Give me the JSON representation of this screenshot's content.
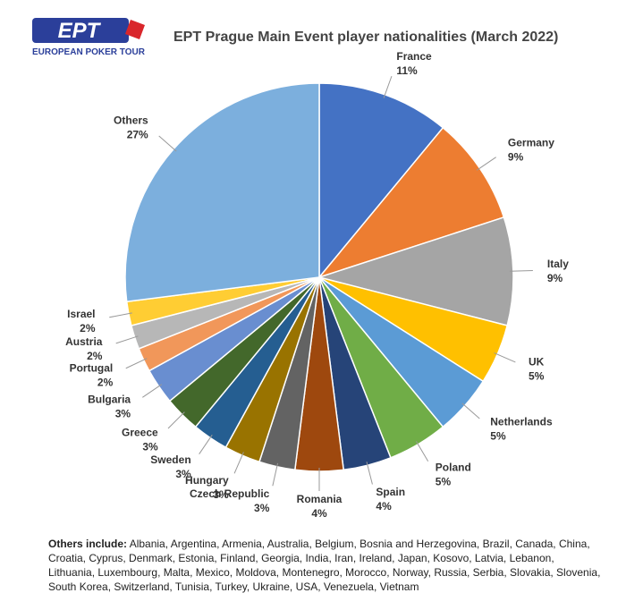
{
  "logo": {
    "text": "EPT",
    "subtitle": "EUROPEAN POKER TOUR"
  },
  "chart_data": {
    "type": "pie",
    "title": "EPT Prague Main Event player nationalities (March 2022)",
    "categories": [
      "France",
      "Germany",
      "Italy",
      "UK",
      "Netherlands",
      "Poland",
      "Spain",
      "Romania",
      "Czech Republic",
      "Hungary",
      "Sweden",
      "Greece",
      "Bulgaria",
      "Portugal",
      "Austria",
      "Israel",
      "Others"
    ],
    "values": [
      11,
      9,
      9,
      5,
      5,
      5,
      4,
      4,
      3,
      3,
      3,
      3,
      3,
      2,
      2,
      2,
      27
    ],
    "value_labels": [
      "11%",
      "9%",
      "9%",
      "5%",
      "5%",
      "5%",
      "4%",
      "4%",
      "3%",
      "3%",
      "3%",
      "3%",
      "3%",
      "2%",
      "2%",
      "2%",
      "27%"
    ],
    "colors": [
      "#4472c4",
      "#ed7d31",
      "#a5a5a5",
      "#ffc000",
      "#5b9bd5",
      "#70ad47",
      "#264478",
      "#9e480e",
      "#636363",
      "#997300",
      "#255e91",
      "#43682b",
      "#698ed0",
      "#f1975a",
      "#b7b7b7",
      "#ffcd33",
      "#7cafdd"
    ]
  },
  "note": {
    "label": "Others include:",
    "text": "Albania, Argentina, Armenia, Australia, Belgium, Bosnia and Herzegovina, Brazil, Canada, China, Croatia, Cyprus, Denmark, Estonia, Finland, Georgia, India, Iran, Ireland, Japan, Kosovo, Latvia, Lebanon, Lithuania, Luxembourg, Malta, Mexico, Moldova, Montenegro, Morocco, Norway, Russia, Serbia, Slovakia, Slovenia, South Korea, Switzerland, Tunisia, Turkey, Ukraine, USA, Venezuela, Vietnam"
  }
}
